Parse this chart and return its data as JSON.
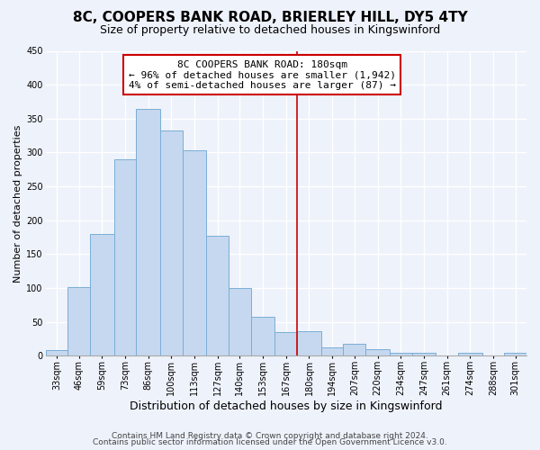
{
  "title": "8C, COOPERS BANK ROAD, BRIERLEY HILL, DY5 4TY",
  "subtitle": "Size of property relative to detached houses in Kingswinford",
  "xlabel": "Distribution of detached houses by size in Kingswinford",
  "ylabel": "Number of detached properties",
  "bar_color": "#c5d8ef",
  "bar_edge_color": "#7aaed6",
  "background_color": "#eef2fb",
  "grid_color": "#ffffff",
  "annotation_title": "8C COOPERS BANK ROAD: 180sqm",
  "annotation_line1": "← 96% of detached houses are smaller (1,942)",
  "annotation_line2": "4% of semi-detached houses are larger (87) →",
  "vline_x": 180,
  "vline_color": "#cc0000",
  "categories": [
    "33sqm",
    "46sqm",
    "59sqm",
    "73sqm",
    "86sqm",
    "100sqm",
    "113sqm",
    "127sqm",
    "140sqm",
    "153sqm",
    "167sqm",
    "180sqm",
    "194sqm",
    "207sqm",
    "220sqm",
    "234sqm",
    "247sqm",
    "261sqm",
    "274sqm",
    "288sqm",
    "301sqm"
  ],
  "bin_edges": [
    33,
    46,
    59,
    73,
    86,
    100,
    113,
    127,
    140,
    153,
    167,
    180,
    194,
    207,
    220,
    234,
    247,
    261,
    274,
    288,
    301,
    314
  ],
  "values": [
    8,
    102,
    180,
    290,
    365,
    333,
    303,
    177,
    100,
    58,
    35,
    37,
    13,
    18,
    10,
    5,
    5,
    0,
    5,
    0,
    4
  ],
  "ylim": [
    0,
    450
  ],
  "yticks": [
    0,
    50,
    100,
    150,
    200,
    250,
    300,
    350,
    400,
    450
  ],
  "footer_line1": "Contains HM Land Registry data © Crown copyright and database right 2024.",
  "footer_line2": "Contains public sector information licensed under the Open Government Licence v3.0.",
  "title_fontsize": 11,
  "subtitle_fontsize": 9,
  "xlabel_fontsize": 9,
  "ylabel_fontsize": 8,
  "tick_fontsize": 7,
  "footer_fontsize": 6.5,
  "annot_fontsize": 8
}
